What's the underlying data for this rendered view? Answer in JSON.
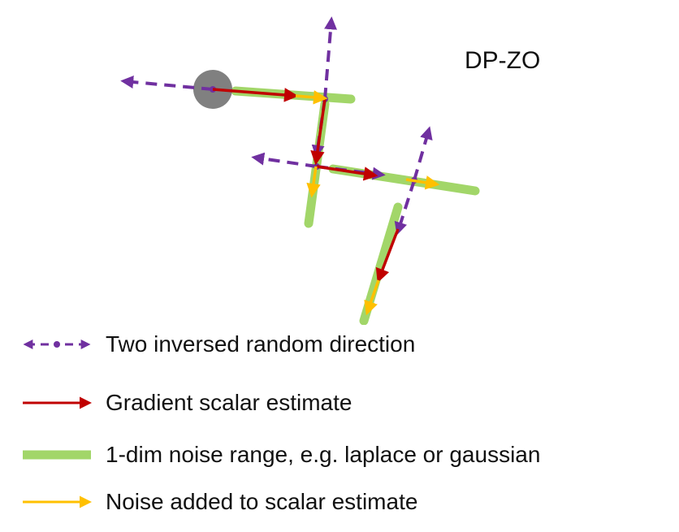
{
  "title": "DP-ZO",
  "colors": {
    "random_direction": "#7030a0",
    "gradient_estimate": "#c00000",
    "noise_range": "#92d050",
    "noise_added": "#ffc000",
    "start_point": "#808080"
  },
  "legend": [
    {
      "key": "random_direction",
      "label": "Two inversed random direction"
    },
    {
      "key": "gradient_estimate",
      "label": "Gradient scalar estimate"
    },
    {
      "key": "noise_range",
      "label": "1-dim noise range, e.g. laplace or gaussian"
    },
    {
      "key": "noise_added",
      "label": "Noise added to scalar estimate"
    }
  ]
}
